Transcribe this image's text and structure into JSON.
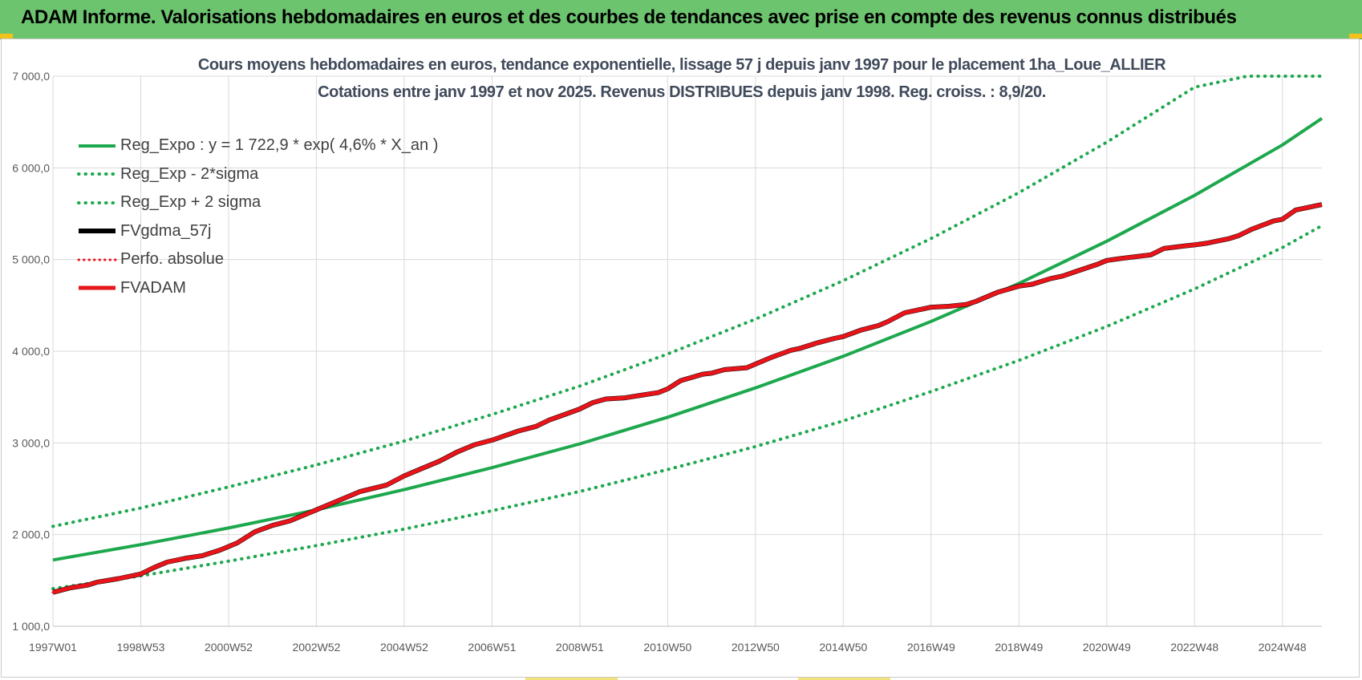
{
  "header": {
    "title": "ADAM Informe. Valorisations hebdomadaires en euros et des courbes de tendances avec prise en compte des revenus connus distribués"
  },
  "colors": {
    "banner": "#6cc46e",
    "green": "#1ea84e",
    "red": "#e8141a",
    "black": "#000000",
    "grid": "#d9d9d9"
  },
  "chart_data": {
    "type": "line",
    "title": "Cours moyens hebdomadaires en euros, tendance exponentielle, lissage 57 j depuis janv 1997  pour le placement 1ha_Loue_ALLIER",
    "subtitle": "Cotations entre janv 1997 et nov 2025. Revenus DISTRIBUES depuis janv 1998.  Reg. croiss. : 8,9/20.",
    "xlabel": "",
    "ylabel": "",
    "xlim": [
      1997.0,
      2025.9
    ],
    "ylim": [
      1000,
      7000
    ],
    "y_ticks": [
      "1 000,0",
      "2 000,0",
      "3 000,0",
      "4 000,0",
      "5 000,0",
      "6 000,0",
      "7 000,0"
    ],
    "y_tick_values": [
      1000,
      2000,
      3000,
      4000,
      5000,
      6000,
      7000
    ],
    "x_ticks": [
      "1997W01",
      "1998W53",
      "2000W52",
      "2002W52",
      "2004W52",
      "2006W51",
      "2008W51",
      "2010W50",
      "2012W50",
      "2014W50",
      "2016W49",
      "2018W49",
      "2020W49",
      "2022W48",
      "2024W48"
    ],
    "x_tick_positions": [
      1997.0,
      1999.0,
      2001.0,
      2003.0,
      2005.0,
      2007.0,
      2009.0,
      2011.0,
      2013.0,
      2015.0,
      2017.0,
      2019.0,
      2021.0,
      2023.0,
      2025.0
    ],
    "grid": true,
    "legend_position": "top-left",
    "series": [
      {
        "name": "Reg_Expo : y = 1 722,9 * exp( 4,6% *  X_an )",
        "style": "solid",
        "color": "#1ea84e",
        "x": [
          1997,
          1999,
          2001,
          2003,
          2005,
          2007,
          2009,
          2011,
          2013,
          2015,
          2017,
          2019,
          2021,
          2023,
          2025,
          2025.9
        ],
        "y": [
          1723,
          1890,
          2072,
          2270,
          2490,
          2730,
          2990,
          3280,
          3600,
          3945,
          4325,
          4740,
          5200,
          5700,
          6250,
          6540
        ]
      },
      {
        "name": "Reg_Exp - 2*sigma",
        "style": "dotted",
        "color": "#1ea84e",
        "x": [
          1997,
          1999,
          2001,
          2003,
          2005,
          2007,
          2009,
          2011,
          2013,
          2015,
          2017,
          2019,
          2021,
          2023,
          2025,
          2025.9
        ],
        "y": [
          1410,
          1550,
          1710,
          1880,
          2060,
          2260,
          2470,
          2710,
          2960,
          3240,
          3560,
          3900,
          4270,
          4680,
          5130,
          5370
        ]
      },
      {
        "name": "Reg_Exp + 2 sigma",
        "style": "dotted",
        "color": "#1ea84e",
        "x": [
          1997,
          1999,
          2001,
          2003,
          2005,
          2007,
          2009,
          2011,
          2013,
          2015,
          2017,
          2019,
          2021,
          2023,
          2024.2,
          2025.9
        ],
        "y": [
          2090,
          2290,
          2520,
          2760,
          3020,
          3310,
          3620,
          3970,
          4350,
          4770,
          5230,
          5730,
          6280,
          6880,
          7000,
          7000
        ]
      },
      {
        "name": "FVgdma_57j",
        "style": "solid",
        "color": "#000000",
        "x": [
          1997.0,
          1997.4,
          1997.8,
          1998.0,
          1998.5,
          1999.0,
          1999.3,
          1999.6,
          2000.0,
          2000.4,
          2000.8,
          2001.2,
          2001.6,
          2002.0,
          2002.4,
          2002.8,
          2003.0,
          2003.4,
          2003.8,
          2004.0,
          2004.6,
          2005.0,
          2005.4,
          2005.8,
          2006.2,
          2006.6,
          2007.0,
          2007.3,
          2007.6,
          2008.0,
          2008.3,
          2008.6,
          2009.0,
          2009.3,
          2009.6,
          2010.0,
          2010.4,
          2010.8,
          2011.0,
          2011.3,
          2011.8,
          2012.0,
          2012.3,
          2012.8,
          2013.0,
          2013.4,
          2013.8,
          2014.0,
          2014.4,
          2014.8,
          2015.0,
          2015.4,
          2015.8,
          2016.0,
          2016.4,
          2016.8,
          2017.0,
          2017.4,
          2017.8,
          2018.0,
          2018.5,
          2019.0,
          2019.3,
          2019.7,
          2020.0,
          2020.3,
          2020.8,
          2021.0,
          2021.3,
          2021.8,
          2022.0,
          2022.3,
          2022.8,
          2023.0,
          2023.3,
          2023.8,
          2024.0,
          2024.3,
          2024.8,
          2025.0,
          2025.3,
          2025.9
        ],
        "y": [
          1370,
          1420,
          1450,
          1480,
          1520,
          1570,
          1640,
          1700,
          1740,
          1770,
          1830,
          1910,
          2030,
          2100,
          2150,
          2230,
          2270,
          2350,
          2430,
          2470,
          2540,
          2640,
          2720,
          2800,
          2900,
          2980,
          3030,
          3080,
          3130,
          3180,
          3250,
          3300,
          3370,
          3440,
          3480,
          3490,
          3520,
          3550,
          3590,
          3680,
          3750,
          3760,
          3800,
          3820,
          3860,
          3940,
          4010,
          4030,
          4090,
          4140,
          4160,
          4230,
          4280,
          4320,
          4420,
          4460,
          4480,
          4490,
          4510,
          4540,
          4640,
          4710,
          4730,
          4790,
          4820,
          4870,
          4950,
          4990,
          5010,
          5040,
          5050,
          5120,
          5150,
          5160,
          5180,
          5230,
          5260,
          5330,
          5420,
          5440,
          5540,
          5600
        ]
      },
      {
        "name": "Perfo. absolue",
        "style": "dotted",
        "color": "#e8141a",
        "x": [
          1997.0,
          1997.4,
          1997.8,
          1998.0,
          1998.5,
          1999.0,
          1999.3,
          1999.6,
          2000.0,
          2000.4,
          2000.8,
          2001.2,
          2001.6,
          2002.0,
          2002.4,
          2002.8,
          2003.0,
          2003.4,
          2003.8,
          2004.0,
          2004.6,
          2005.0,
          2005.4,
          2005.8,
          2006.2,
          2006.6,
          2007.0,
          2007.3,
          2007.6,
          2008.0,
          2008.3,
          2008.6,
          2009.0,
          2009.3,
          2009.6,
          2010.0,
          2010.4,
          2010.8,
          2011.0,
          2011.3,
          2011.8,
          2012.0,
          2012.3,
          2012.8,
          2013.0,
          2013.4,
          2013.8,
          2014.0,
          2014.4,
          2014.8,
          2015.0,
          2015.4,
          2015.8,
          2016.0,
          2016.4,
          2016.8,
          2017.0,
          2017.4,
          2017.8,
          2018.0,
          2018.5,
          2019.0,
          2019.3,
          2019.7,
          2020.0,
          2020.3,
          2020.8,
          2021.0,
          2021.3,
          2021.8,
          2022.0,
          2022.3,
          2022.8,
          2023.0,
          2023.3,
          2023.8,
          2024.0,
          2024.3,
          2024.8,
          2025.0,
          2025.3,
          2025.9
        ],
        "y": [
          1370,
          1420,
          1450,
          1480,
          1520,
          1570,
          1640,
          1700,
          1740,
          1770,
          1830,
          1910,
          2030,
          2100,
          2150,
          2230,
          2270,
          2350,
          2430,
          2470,
          2540,
          2640,
          2720,
          2800,
          2900,
          2980,
          3030,
          3080,
          3130,
          3180,
          3250,
          3300,
          3370,
          3440,
          3480,
          3490,
          3520,
          3550,
          3590,
          3680,
          3750,
          3760,
          3800,
          3820,
          3860,
          3940,
          4010,
          4030,
          4090,
          4140,
          4160,
          4230,
          4280,
          4320,
          4420,
          4460,
          4480,
          4490,
          4510,
          4540,
          4640,
          4710,
          4730,
          4790,
          4820,
          4870,
          4950,
          4990,
          5010,
          5040,
          5050,
          5120,
          5150,
          5160,
          5180,
          5230,
          5260,
          5330,
          5420,
          5440,
          5540,
          5600
        ]
      },
      {
        "name": "FVADAM",
        "style": "solid-thick",
        "color": "#e8141a",
        "x": [
          1997.0,
          1997.4,
          1997.8,
          1998.0,
          1998.5,
          1999.0,
          1999.3,
          1999.6,
          2000.0,
          2000.4,
          2000.8,
          2001.2,
          2001.6,
          2002.0,
          2002.4,
          2002.8,
          2003.0,
          2003.4,
          2003.8,
          2004.0,
          2004.6,
          2005.0,
          2005.4,
          2005.8,
          2006.2,
          2006.6,
          2007.0,
          2007.3,
          2007.6,
          2008.0,
          2008.3,
          2008.6,
          2009.0,
          2009.3,
          2009.6,
          2010.0,
          2010.4,
          2010.8,
          2011.0,
          2011.3,
          2011.8,
          2012.0,
          2012.3,
          2012.8,
          2013.0,
          2013.4,
          2013.8,
          2014.0,
          2014.4,
          2014.8,
          2015.0,
          2015.4,
          2015.8,
          2016.0,
          2016.4,
          2016.8,
          2017.0,
          2017.4,
          2017.8,
          2018.0,
          2018.5,
          2019.0,
          2019.3,
          2019.7,
          2020.0,
          2020.3,
          2020.8,
          2021.0,
          2021.3,
          2021.8,
          2022.0,
          2022.3,
          2022.8,
          2023.0,
          2023.3,
          2023.8,
          2024.0,
          2024.3,
          2024.8,
          2025.0,
          2025.3,
          2025.9
        ],
        "y": [
          1370,
          1420,
          1450,
          1480,
          1520,
          1570,
          1640,
          1700,
          1740,
          1770,
          1830,
          1910,
          2030,
          2100,
          2150,
          2230,
          2270,
          2350,
          2430,
          2470,
          2540,
          2640,
          2720,
          2800,
          2900,
          2980,
          3030,
          3080,
          3130,
          3180,
          3250,
          3300,
          3370,
          3440,
          3480,
          3490,
          3520,
          3550,
          3590,
          3680,
          3750,
          3760,
          3800,
          3820,
          3860,
          3940,
          4010,
          4030,
          4090,
          4140,
          4160,
          4230,
          4280,
          4320,
          4420,
          4460,
          4480,
          4490,
          4510,
          4540,
          4640,
          4710,
          4730,
          4790,
          4820,
          4870,
          4950,
          4990,
          5010,
          5040,
          5050,
          5120,
          5150,
          5160,
          5180,
          5230,
          5260,
          5330,
          5420,
          5440,
          5540,
          5600
        ]
      }
    ]
  }
}
